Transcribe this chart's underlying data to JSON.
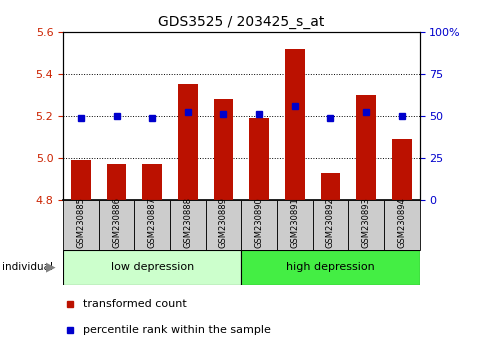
{
  "title": "GDS3525 / 203425_s_at",
  "categories": [
    "GSM230885",
    "GSM230886",
    "GSM230887",
    "GSM230888",
    "GSM230889",
    "GSM230890",
    "GSM230891",
    "GSM230892",
    "GSM230893",
    "GSM230894"
  ],
  "bar_values": [
    4.99,
    4.97,
    4.97,
    5.35,
    5.28,
    5.19,
    5.52,
    4.93,
    5.3,
    5.09
  ],
  "percentile_values": [
    5.19,
    5.2,
    5.19,
    5.22,
    5.21,
    5.21,
    5.245,
    5.19,
    5.22,
    5.2
  ],
  "bar_bottom": 4.8,
  "ylim_left": [
    4.8,
    5.6
  ],
  "ylim_right": [
    0,
    100
  ],
  "yticks_left": [
    4.8,
    5.0,
    5.2,
    5.4,
    5.6
  ],
  "yticks_right": [
    0,
    25,
    50,
    75,
    100
  ],
  "ytick_labels_right": [
    "0",
    "25",
    "50",
    "75",
    "100%"
  ],
  "bar_color": "#bb1100",
  "percentile_color": "#0000cc",
  "group1_label": "low depression",
  "group2_label": "high depression",
  "group1_indices": [
    0,
    1,
    2,
    3,
    4
  ],
  "group2_indices": [
    5,
    6,
    7,
    8,
    9
  ],
  "group1_bg": "#ccffcc",
  "group2_bg": "#44ee44",
  "sample_bg": "#cccccc",
  "legend_bar_label": "transformed count",
  "legend_pct_label": "percentile rank within the sample",
  "individual_label": "individual",
  "title_fontsize": 10,
  "tick_fontsize": 8,
  "sample_fontsize": 6,
  "group_fontsize": 8,
  "legend_fontsize": 8
}
